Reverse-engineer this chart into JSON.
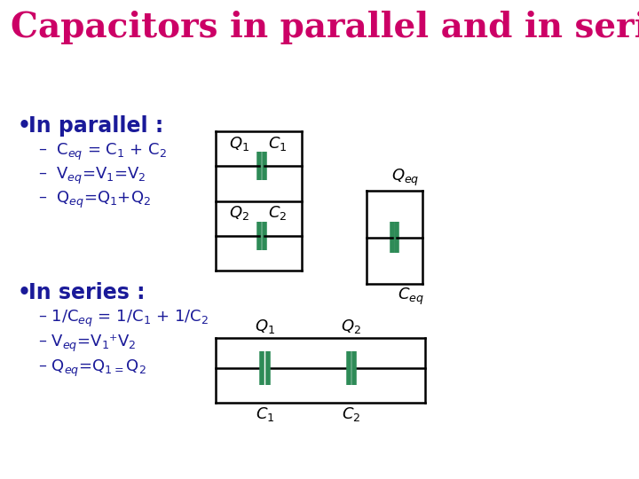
{
  "title": "Capacitors in parallel and in series",
  "title_color": "#CC0066",
  "title_fontsize": 28,
  "background_color": "#FFFFFF",
  "text_color": "#1a1a99",
  "cap_color": "#2E8B57",
  "bullet_parallel": "In parallel :",
  "bullet_series": "In series :",
  "parallel_sub": [
    "C$_{eq}$ = C$_1$ + C$_2$",
    "V$_{eq}$=V$_1$=V$_2$",
    "Q$_{eq}$=Q$_1$+Q$_2$"
  ],
  "series_sub": [
    "1/C$_{eq}$ = 1/C$_1$ + 1/C$_2$",
    "V$_{eq}$=V$_{1}$+V$_2$",
    "Q$_{eq}$=Q$_{1=}$Q$_2$"
  ]
}
